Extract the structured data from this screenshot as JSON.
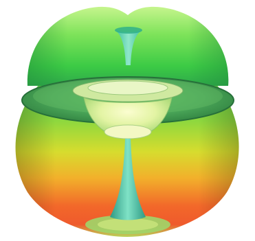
{
  "scene": {
    "subject": "3d-radiation-pattern-render",
    "colors": {
      "background": "#ffffff",
      "top_lobe_light": "#b6f07a",
      "top_lobe_mid": "#4fd64a",
      "top_lobe_dark": "#2aa83c",
      "disc": "#3f9f52",
      "disc_rim": "#2f7f3f",
      "cone_light": "#f3fbb2",
      "cone_mid": "#c8e98a",
      "cone_dark": "#86c66a",
      "bottom_green": "#6ad04f",
      "bottom_yellow": "#e6da2c",
      "bottom_orange": "#f28a2a",
      "bottom_red": "#f0502a",
      "spindle": "#5fd0b0",
      "spindle_dark": "#3aa58d",
      "base_ring": "#8bd06a"
    }
  }
}
